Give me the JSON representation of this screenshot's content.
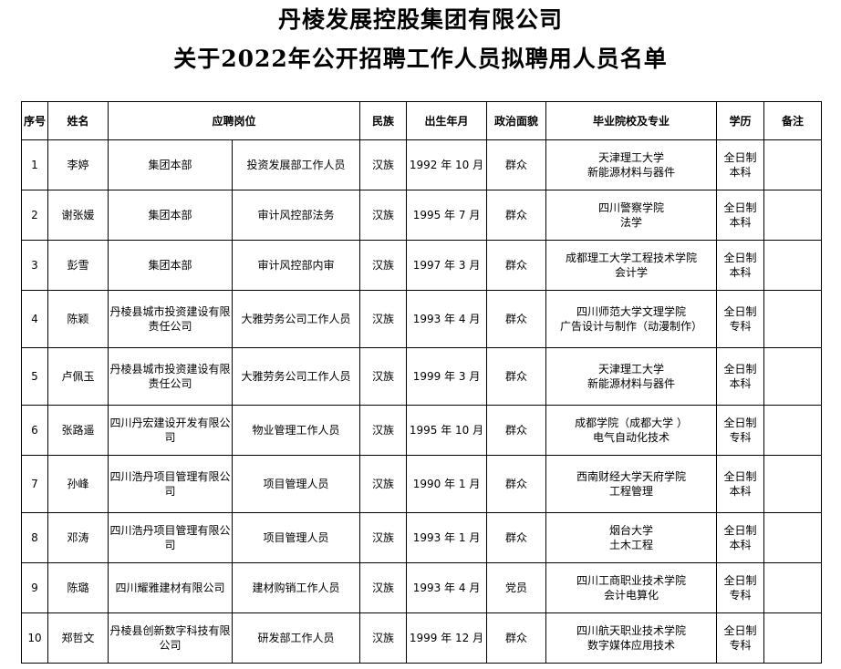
{
  "title_line1": "丹棱发展控股集团有限公司",
  "title_line2": "关于2022年公开招聘工作人员拟聘用人员名单",
  "headers": {
    "no": "序号",
    "name": "姓名",
    "position": "应聘岗位",
    "ethnicity": "民族",
    "birth": "出生年月",
    "political": "政治面貌",
    "school": "毕业院校及专业",
    "education": "学历",
    "remark": "备注"
  },
  "rows": [
    {
      "no": "1",
      "name": "李婷",
      "unit": "集团本部",
      "job": "投资发展部工作人员",
      "ethnicity": "汉族",
      "birth": "1992 年 10 月",
      "political": "群众",
      "school": "天津理工大学",
      "major": "新能源材料与器件",
      "edu1": "全日制",
      "edu2": "本科",
      "remark": ""
    },
    {
      "no": "2",
      "name": "谢张媛",
      "unit": "集团本部",
      "job": "审计风控部法务",
      "ethnicity": "汉族",
      "birth": "1995 年 7 月",
      "political": "群众",
      "school": "四川警察学院",
      "major": "法学",
      "edu1": "全日制",
      "edu2": "本科",
      "remark": ""
    },
    {
      "no": "3",
      "name": "彭雪",
      "unit": "集团本部",
      "job": "审计风控部内审",
      "ethnicity": "汉族",
      "birth": "1997 年 3 月",
      "political": "群众",
      "school": "成都理工大学工程技术学院",
      "major": "会计学",
      "edu1": "全日制",
      "edu2": "本科",
      "remark": ""
    },
    {
      "no": "4",
      "name": "陈颖",
      "unit": "丹棱县城市投资建设有限责任公司",
      "job": "大雅劳务公司工作人员",
      "ethnicity": "汉族",
      "birth": "1993 年 4 月",
      "political": "群众",
      "school": "四川师范大学文理学院",
      "major": "广告设计与制作（动漫制作）",
      "edu1": "全日制",
      "edu2": "专科",
      "remark": ""
    },
    {
      "no": "5",
      "name": "卢佩玉",
      "unit": "丹棱县城市投资建设有限责任公司",
      "job": "大雅劳务公司工作人员",
      "ethnicity": "汉族",
      "birth": "1999 年 3 月",
      "political": "群众",
      "school": "天津理工大学",
      "major": "新能源材料与器件",
      "edu1": "全日制",
      "edu2": "本科",
      "remark": ""
    },
    {
      "no": "6",
      "name": "张路遥",
      "unit": "四川丹宏建设开发有限公司",
      "job": "物业管理工作人员",
      "ethnicity": "汉族",
      "birth": "1995 年 10 月",
      "political": "群众",
      "school": "成都学院（成都大学 ）",
      "major": "电气自动化技术",
      "edu1": "全日制",
      "edu2": "专科",
      "remark": ""
    },
    {
      "no": "7",
      "name": "孙峰",
      "unit": "四川浩丹项目管理有限公司",
      "job": "项目管理人员",
      "ethnicity": "汉族",
      "birth": "1990 年 1 月",
      "political": "群众",
      "school": "西南财经大学天府学院",
      "major": "工程管理",
      "edu1": "全日制",
      "edu2": "本科",
      "remark": ""
    },
    {
      "no": "8",
      "name": "邓涛",
      "unit": "四川浩丹项目管理有限公司",
      "job": "项目管理人员",
      "ethnicity": "汉族",
      "birth": "1993 年 1 月",
      "political": "群众",
      "school": "烟台大学",
      "major": "土木工程",
      "edu1": "全日制",
      "edu2": "本科",
      "remark": ""
    },
    {
      "no": "9",
      "name": "陈璐",
      "unit": "四川耀雅建材有限公司",
      "job": "建材购销工作人员",
      "ethnicity": "汉族",
      "birth": "1993 年 4 月",
      "political": "党员",
      "school": "四川工商职业技术学院",
      "major": "会计电算化",
      "edu1": "全日制",
      "edu2": "专科",
      "remark": ""
    },
    {
      "no": "10",
      "name": "郑哲文",
      "unit": "丹棱县创新数字科技有限公司",
      "job": "研发部工作人员",
      "ethnicity": "汉族",
      "birth": "1999 年 12 月",
      "political": "群众",
      "school": "四川航天职业技术学院",
      "major": "数字媒体应用技术",
      "edu1": "全日制",
      "edu2": "专科",
      "remark": ""
    }
  ]
}
